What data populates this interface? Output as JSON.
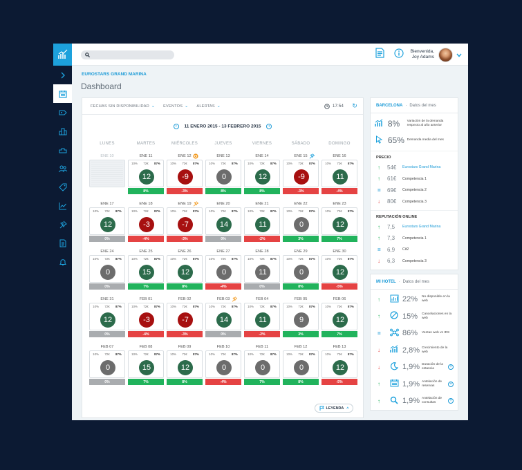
{
  "header": {
    "search_placeholder": "",
    "greeting": "Bienvenida,",
    "user_name": "Joy Adams"
  },
  "hotel_name": "EUROSTARS GRAND MARINA",
  "page_title": "Dashboard",
  "filters": {
    "dates": "FECHAS SIN DISPONIBILIDAD",
    "events": "EVENTOS",
    "alerts": "ALERTAS",
    "time": "17:54"
  },
  "date_range": "11 ENERO 2015 - 13 FEBRERO 2015",
  "weekdays": [
    "LUNES",
    "MARTES",
    "MIÉRCOLES",
    "JUEVES",
    "VIERNES",
    "SÁBADO",
    "DOMINGO"
  ],
  "weeks": [
    [
      {
        "date": "ENE 10",
        "empty": true
      },
      {
        "date": "ENE 11",
        "s1": "10%",
        "s2": "72€",
        "s3": "87%",
        "value": "12",
        "state": "green",
        "change": "8%",
        "bar": "green"
      },
      {
        "date": "ENE 12",
        "s1": "10%",
        "s2": "72€",
        "s3": "87%",
        "value": "-9",
        "state": "red",
        "change": "-3%",
        "bar": "red",
        "icon": "event-icon"
      },
      {
        "date": "ENE 13",
        "s1": "10%",
        "s2": "72€",
        "s3": "87%",
        "value": "0",
        "state": "grey",
        "change": "8%",
        "bar": "green"
      },
      {
        "date": "ENE 14",
        "s1": "10%",
        "s2": "72€",
        "s3": "87%",
        "value": "12",
        "state": "green",
        "change": "8%",
        "bar": "green"
      },
      {
        "date": "ENE 15",
        "s1": "10%",
        "s2": "72€",
        "s3": "87%",
        "value": "-9",
        "state": "red",
        "change": "-3%",
        "bar": "red",
        "icon": "pin-icon"
      },
      {
        "date": "ENE 16",
        "s1": "10%",
        "s2": "72€",
        "s3": "87%",
        "value": "11",
        "state": "green",
        "change": "-4%",
        "bar": "red"
      }
    ],
    [
      {
        "date": "ENE 17",
        "s1": "10%",
        "s2": "72€",
        "s3": "87%",
        "value": "12",
        "state": "green",
        "change": "0%",
        "bar": "grey"
      },
      {
        "date": "ENE 18",
        "s1": "10%",
        "s2": "72€",
        "s3": "87%",
        "value": "-3",
        "state": "red",
        "change": "-4%",
        "bar": "red"
      },
      {
        "date": "ENE 19",
        "s1": "10%",
        "s2": "72€",
        "s3": "87%",
        "value": "-7",
        "state": "red",
        "change": "-3%",
        "bar": "red",
        "icon": "pin-icon"
      },
      {
        "date": "ENE 20",
        "s1": "10%",
        "s2": "72€",
        "s3": "87%",
        "value": "14",
        "state": "green",
        "change": "0%",
        "bar": "grey"
      },
      {
        "date": "ENE 21",
        "s1": "10%",
        "s2": "72€",
        "s3": "87%",
        "value": "11",
        "state": "green",
        "change": "-2%",
        "bar": "red"
      },
      {
        "date": "ENE 22",
        "s1": "10%",
        "s2": "72€",
        "s3": "87%",
        "value": "0",
        "state": "grey",
        "change": "3%",
        "bar": "green"
      },
      {
        "date": "ENE 23",
        "s1": "10%",
        "s2": "72€",
        "s3": "87%",
        "value": "12",
        "state": "green",
        "change": "7%",
        "bar": "green"
      }
    ],
    [
      {
        "date": "ENE 24",
        "s1": "10%",
        "s2": "72€",
        "s3": "87%",
        "value": "0",
        "state": "grey",
        "change": "0%",
        "bar": "grey"
      },
      {
        "date": "ENE 25",
        "s1": "10%",
        "s2": "72€",
        "s3": "87%",
        "value": "15",
        "state": "green",
        "change": "7%",
        "bar": "green"
      },
      {
        "date": "ENE 26",
        "s1": "10%",
        "s2": "72€",
        "s3": "87%",
        "value": "12",
        "state": "green",
        "change": "8%",
        "bar": "green"
      },
      {
        "date": "ENE 27",
        "s1": "10%",
        "s2": "72€",
        "s3": "87%",
        "value": "0",
        "state": "grey",
        "change": "-4%",
        "bar": "red"
      },
      {
        "date": "ENE 28",
        "s1": "10%",
        "s2": "72€",
        "s3": "87%",
        "value": "11",
        "state": "grey",
        "change": "0%",
        "bar": "grey"
      },
      {
        "date": "ENE 29",
        "s1": "10%",
        "s2": "72€",
        "s3": "87%",
        "value": "0",
        "state": "grey",
        "change": "8%",
        "bar": "green"
      },
      {
        "date": "ENE 30",
        "s1": "10%",
        "s2": "72€",
        "s3": "87%",
        "value": "12",
        "state": "green",
        "change": "-5%",
        "bar": "red"
      }
    ],
    [
      {
        "date": "ENE 31",
        "s1": "10%",
        "s2": "72€",
        "s3": "87%",
        "value": "12",
        "state": "green",
        "change": "0%",
        "bar": "grey"
      },
      {
        "date": "FEB 01",
        "s1": "10%",
        "s2": "72€",
        "s3": "87%",
        "value": "-3",
        "state": "red",
        "change": "-4%",
        "bar": "red"
      },
      {
        "date": "FEB 02",
        "s1": "10%",
        "s2": "72€",
        "s3": "87%",
        "value": "-7",
        "state": "red",
        "change": "-3%",
        "bar": "red"
      },
      {
        "date": "FEB 03",
        "s1": "10%",
        "s2": "72€",
        "s3": "87%",
        "value": "14",
        "state": "green",
        "change": "0%",
        "bar": "grey",
        "icon": "pin-icon"
      },
      {
        "date": "FEB 04",
        "s1": "10%",
        "s2": "72€",
        "s3": "87%",
        "value": "11",
        "state": "green",
        "change": "-2%",
        "bar": "red"
      },
      {
        "date": "FEB 05",
        "s1": "10%",
        "s2": "72€",
        "s3": "87%",
        "value": "9",
        "state": "grey",
        "change": "3%",
        "bar": "green"
      },
      {
        "date": "FEB 06",
        "s1": "10%",
        "s2": "72€",
        "s3": "87%",
        "value": "12",
        "state": "green",
        "change": "7%",
        "bar": "green"
      }
    ],
    [
      {
        "date": "FEB 07",
        "s1": "10%",
        "s2": "72€",
        "s3": "87%",
        "value": "0",
        "state": "grey",
        "change": "0%",
        "bar": "grey"
      },
      {
        "date": "FEB 08",
        "s1": "10%",
        "s2": "72€",
        "s3": "87%",
        "value": "15",
        "state": "green",
        "change": "7%",
        "bar": "green"
      },
      {
        "date": "FEB 09",
        "s1": "10%",
        "s2": "72€",
        "s3": "87%",
        "value": "12",
        "state": "green",
        "change": "8%",
        "bar": "green"
      },
      {
        "date": "FEB 10",
        "s1": "10%",
        "s2": "72€",
        "s3": "87%",
        "value": "0",
        "state": "grey",
        "change": "-4%",
        "bar": "red"
      },
      {
        "date": "FEB 11",
        "s1": "10%",
        "s2": "72€",
        "s3": "87%",
        "value": "0",
        "state": "grey",
        "change": "7%",
        "bar": "green"
      },
      {
        "date": "FEB 12",
        "s1": "10%",
        "s2": "72€",
        "s3": "87%",
        "value": "0",
        "state": "grey",
        "change": "8%",
        "bar": "green"
      },
      {
        "date": "FEB 13",
        "s1": "10%",
        "s2": "72€",
        "s3": "87%",
        "value": "12",
        "state": "green",
        "change": "-5%",
        "bar": "red"
      }
    ]
  ],
  "legend_label": "LEYENDA",
  "city_card": {
    "title": "BARCELONA",
    "subtitle": "Datos del mes",
    "metrics": [
      {
        "icon": "demand-chart-icon",
        "value": "8%",
        "desc": "Variación de la demanda respecto al año anterior"
      },
      {
        "icon": "cursor-icon",
        "value": "65%",
        "desc": "Demanda media del mes"
      }
    ],
    "price_title": "PRECIO",
    "prices": [
      {
        "trend": "up",
        "value": "54€",
        "name": "Eurostars Grand Marina",
        "highlight": true
      },
      {
        "trend": "up",
        "value": "61€",
        "name": "Competencia 1"
      },
      {
        "trend": "eq",
        "value": "69€",
        "name": "Competencia 2"
      },
      {
        "trend": "down",
        "value": "80€",
        "name": "Competencia 3"
      }
    ],
    "rep_title": "REPUTACIÓN ONLINE",
    "reputation": [
      {
        "trend": "up",
        "value": "7,5",
        "name": "Eurostars Grand Marina",
        "highlight": true
      },
      {
        "trend": "up",
        "value": "7,3",
        "name": "Competencia 1"
      },
      {
        "trend": "eq",
        "value": "6,9",
        "name": "Cit2"
      },
      {
        "trend": "down",
        "value": "6,3",
        "name": "Competencia 3"
      }
    ]
  },
  "hotel_card": {
    "title": "MI HOTEL",
    "subtitle": "Datos del mes",
    "rows": [
      {
        "trend": "up",
        "icon": "bar-chart-icon",
        "value": "22%",
        "desc": "No disponible en la web",
        "plus": false
      },
      {
        "trend": "up",
        "icon": "cancel-icon",
        "value": "15%",
        "desc": "Cancelaciones en la web",
        "plus": false
      },
      {
        "trend": "eq",
        "icon": "network-icon",
        "value": "86%",
        "desc": "Ventas web vs IDS",
        "plus": false
      },
      {
        "trend": "down",
        "icon": "growth-icon",
        "value": "2,8%",
        "desc": "Crecimiento de la web",
        "plus": false
      },
      {
        "trend": "down",
        "icon": "moon-icon",
        "value": "1,9%",
        "desc": "Duración de la estancia",
        "plus": true
      },
      {
        "trend": "up",
        "icon": "calendar-icon",
        "value": "1,9%",
        "desc": "Antelación de reservas",
        "plus": true
      },
      {
        "trend": "up",
        "icon": "search-icon",
        "value": "1,9%",
        "desc": "Antelación de consultas",
        "plus": true
      }
    ]
  }
}
